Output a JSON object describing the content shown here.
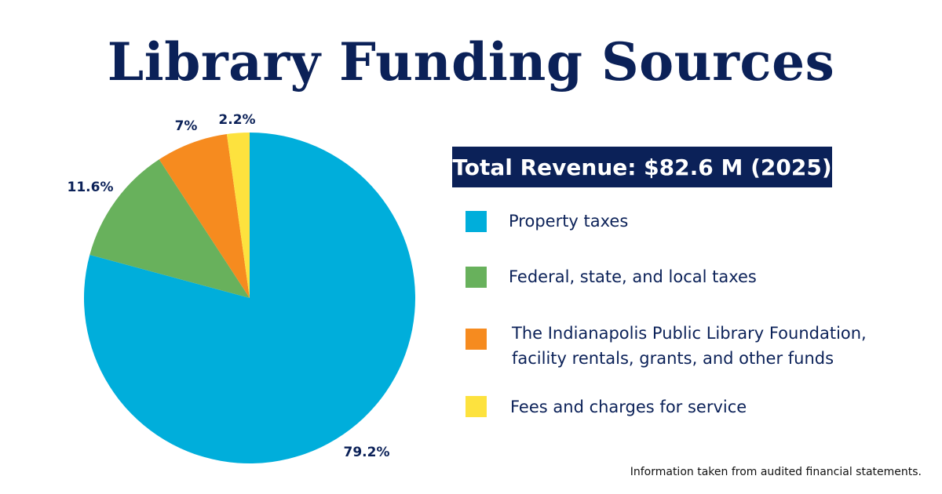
{
  "chart_data": {
    "type": "pie",
    "title": "Library Funding Sources",
    "subtitle": "Total Revenue: $82.6 M (2025)",
    "categories": [
      "Property taxes",
      "Federal, state, and local taxes",
      "The Indianapolis Public Library Foundation, facility rentals, grants, and other funds",
      "Fees and charges for service"
    ],
    "values": [
      79.2,
      11.6,
      7,
      2.2
    ],
    "value_labels": [
      "79.2%",
      "11.6%",
      "7%",
      "2.2%"
    ],
    "colors": [
      "#00aedb",
      "#68b15c",
      "#f68b1f",
      "#fde23e"
    ],
    "legend_placement": "right",
    "start_angle": "12 o'clock",
    "direction": "clockwise",
    "footnote": "Information taken from audited financial statements."
  },
  "legend": [
    {
      "lines": [
        "Property taxes"
      ],
      "color": "#00aedb"
    },
    {
      "lines": [
        "Federal, state, and local taxes"
      ],
      "color": "#68b15c"
    },
    {
      "lines": [
        "The Indianapolis Public Library Foundation,",
        "facility rentals, grants, and other funds"
      ],
      "color": "#f68b1f"
    },
    {
      "lines": [
        "Fees and charges for service"
      ],
      "color": "#fde23e"
    }
  ]
}
